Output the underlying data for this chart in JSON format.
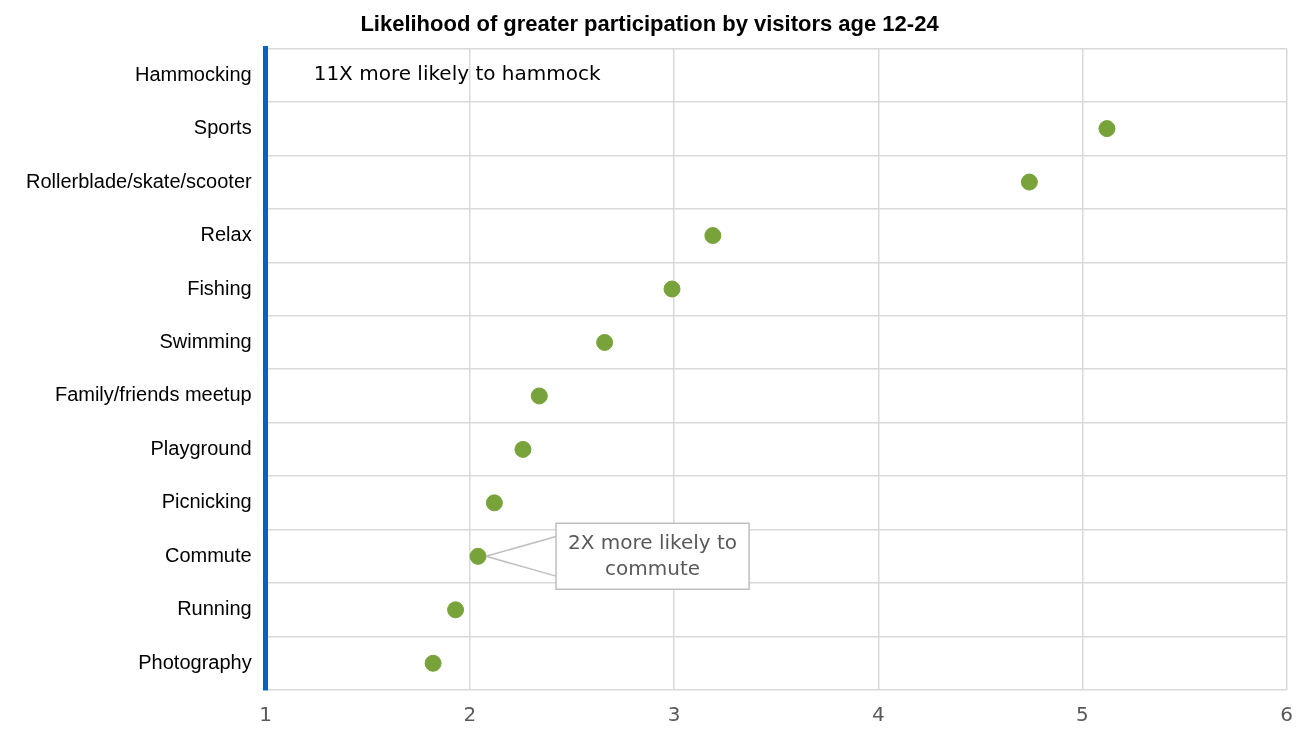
{
  "chart_data": {
    "type": "scatter",
    "orientation": "horizontal",
    "title": "Likelihood of greater participation by visitors age 12-24",
    "categories": [
      "Hammocking",
      "Sports",
      "Rollerblade/skate/scooter",
      "Relax",
      "Fishing",
      "Swimming",
      "Family/friends meetup",
      "Playground",
      "Picnicking",
      "Commute",
      "Running",
      "Photography"
    ],
    "values": [
      null,
      5.12,
      4.74,
      3.19,
      2.99,
      2.66,
      2.34,
      2.26,
      2.12,
      2.04,
      1.93,
      1.82
    ],
    "color": "#77a33a",
    "marker": "circle",
    "xlim": [
      1,
      6
    ],
    "xticks": [
      1,
      2,
      3,
      4,
      5,
      6
    ],
    "grid": true,
    "annotations": [
      "11X more likely to hammock",
      {
        "text": "2X more likely to commute",
        "x": 2.04,
        "y": "Commute"
      }
    ]
  }
}
